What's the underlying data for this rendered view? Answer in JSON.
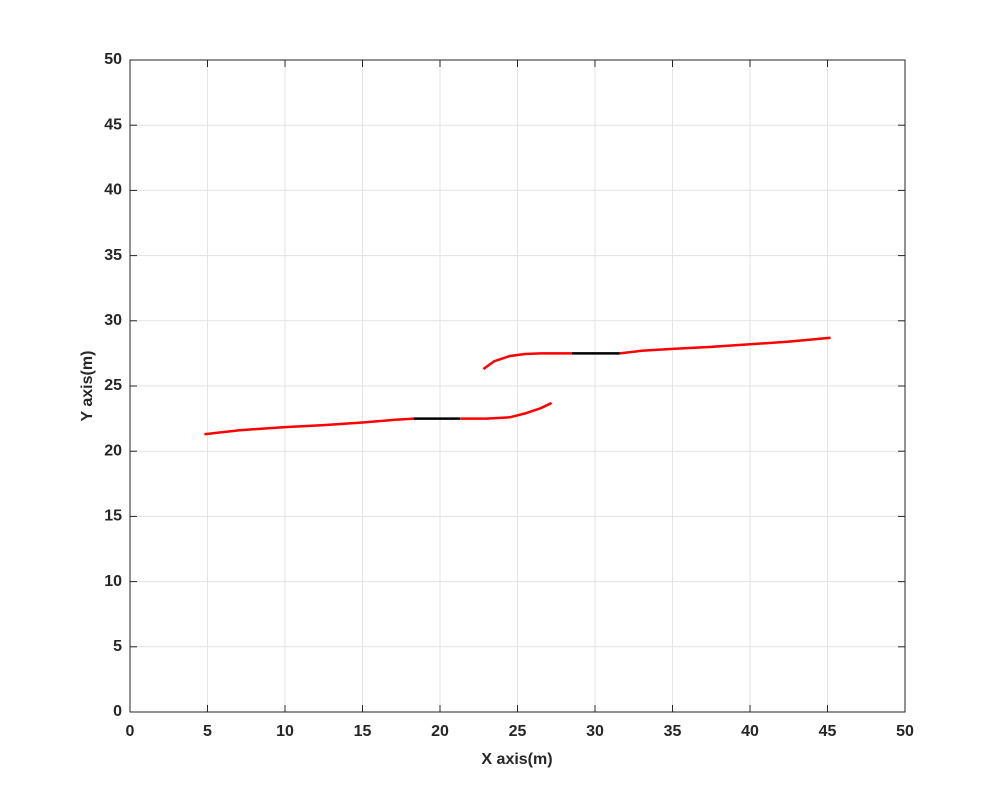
{
  "chart_data": {
    "type": "line",
    "x_label": "X axis(m)",
    "y_label": "Y axis(m)",
    "xlim": [
      0,
      50
    ],
    "ylim": [
      0,
      50
    ],
    "xticks": [
      0,
      5,
      10,
      15,
      20,
      25,
      30,
      35,
      40,
      45,
      50
    ],
    "yticks": [
      0,
      5,
      10,
      15,
      20,
      25,
      30,
      35,
      40,
      45,
      50
    ],
    "grid": true,
    "series": [
      {
        "color": "#ff0000",
        "x": [
          4.8,
          7,
          10,
          12.5,
          15,
          17,
          18.3
        ],
        "values": [
          21.3,
          21.6,
          21.85,
          22.0,
          22.2,
          22.4,
          22.5
        ]
      },
      {
        "color": "#000000",
        "x": [
          18.3,
          21.3
        ],
        "values": [
          22.5,
          22.5
        ]
      },
      {
        "color": "#ff0000",
        "x": [
          21.3,
          23,
          24.5,
          25.5,
          26.5,
          27.2
        ],
        "values": [
          22.5,
          22.5,
          22.6,
          22.9,
          23.3,
          23.7
        ]
      },
      {
        "color": "#ff0000",
        "x": [
          22.8,
          23.5,
          24.5,
          25.5,
          26.5,
          28.5
        ],
        "values": [
          26.3,
          26.9,
          27.3,
          27.45,
          27.5,
          27.5
        ]
      },
      {
        "color": "#000000",
        "x": [
          28.5,
          31.6
        ],
        "values": [
          27.5,
          27.5
        ]
      },
      {
        "color": "#ff0000",
        "x": [
          31.6,
          33,
          35,
          37.5,
          40,
          42.5,
          45.2
        ],
        "values": [
          27.5,
          27.7,
          27.85,
          28.0,
          28.2,
          28.4,
          28.7
        ]
      }
    ]
  }
}
